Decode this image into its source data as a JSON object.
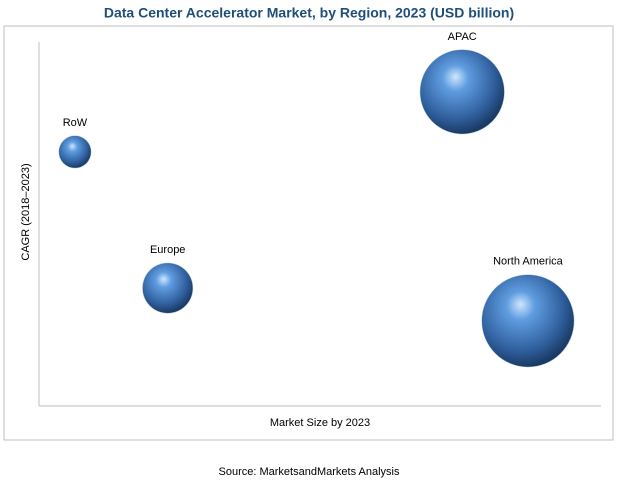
{
  "chart_data": {
    "type": "bubble",
    "title": "Data Center Accelerator Market, by Region, 2023 (USD billion)",
    "x_label": "Market Size by 2023",
    "y_label": "CAGR (2018–2023)",
    "source": "Source: MarketsandMarkets Analysis",
    "categories": [
      "RoW",
      "Europe",
      "APAC",
      "North America"
    ],
    "x": [
      6.4,
      22.9,
      75.3,
      87.0
    ],
    "values": [
      69.8,
      32.4,
      86.3,
      23.4
    ],
    "sizes": [
      16,
      25,
      42,
      46
    ],
    "color": "#3a6fb0",
    "xlim": [
      0,
      100
    ],
    "ylim": [
      0,
      100
    ]
  }
}
